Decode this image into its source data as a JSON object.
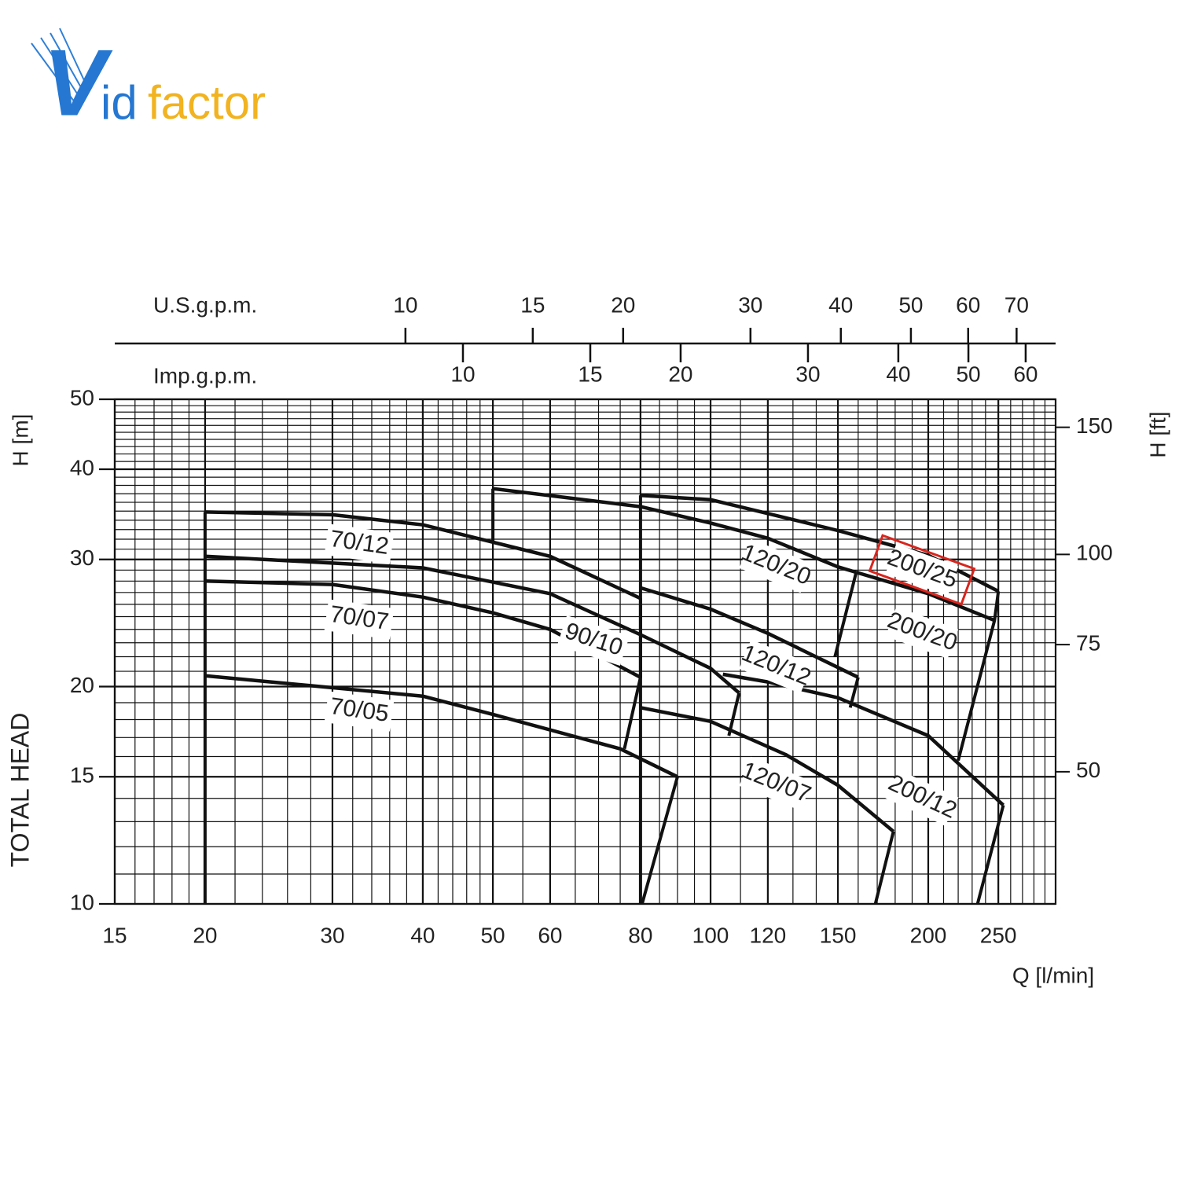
{
  "logo": [
    "V",
    "id",
    "factor"
  ],
  "chart_data": {
    "type": "line",
    "xlabel": "Q [l/min]",
    "ylabel": "H [m]",
    "ylabel_extra": "TOTAL HEAD",
    "y2label": "H [ft]",
    "xscale": "log",
    "yscale": "log",
    "xlim": [
      15,
      300
    ],
    "ylim": [
      10,
      50
    ],
    "y2lim": [
      32.8,
      164
    ],
    "xticks": [
      15,
      20,
      30,
      40,
      50,
      60,
      80,
      100,
      120,
      150,
      200,
      250
    ],
    "yticks": [
      10,
      15,
      20,
      30,
      40,
      50
    ],
    "y2ticks": [
      50,
      75,
      100,
      150
    ],
    "xgrid": [
      16,
      17,
      18,
      19,
      22,
      24,
      26,
      28,
      32,
      34,
      36,
      38,
      42,
      44,
      46,
      48,
      55,
      65,
      70,
      75,
      85,
      90,
      95,
      110,
      130,
      140,
      160,
      170,
      180,
      190,
      210,
      220,
      230,
      240,
      260,
      270,
      280,
      290
    ],
    "ygrid": [
      11,
      12,
      13,
      14,
      16,
      17,
      18,
      19,
      21,
      22,
      23,
      24,
      25,
      26,
      27,
      28,
      29,
      31,
      32,
      33,
      34,
      35,
      36,
      37,
      38,
      39,
      41,
      42,
      43,
      44,
      45,
      46,
      47,
      48,
      49
    ],
    "grid": true,
    "color": "#111111",
    "top_axes": [
      {
        "label": "U.S.g.p.m.",
        "lim": [
          3.963,
          79.26
        ],
        "ticks": [
          10,
          15,
          20,
          30,
          40,
          50,
          60,
          70
        ]
      },
      {
        "label": "Imp.g.p.m.",
        "lim": [
          3.3,
          66.0
        ],
        "ticks": [
          10,
          15,
          20,
          30,
          40,
          50,
          60
        ]
      }
    ],
    "series": [
      {
        "name": "70/12",
        "x": [
          20,
          30,
          40,
          50,
          60,
          80
        ],
        "values": [
          34.9,
          34.6,
          33.5,
          31.7,
          30.3,
          26.5
        ]
      },
      {
        "name": "70/07",
        "x": [
          20,
          30,
          40,
          50,
          60,
          80
        ],
        "values": [
          28.0,
          27.7,
          26.6,
          25.3,
          24.0,
          20.6
        ]
      },
      {
        "name": "70/05",
        "x": [
          20,
          40,
          50,
          75,
          90
        ],
        "values": [
          20.7,
          19.4,
          18.3,
          16.4,
          15.0
        ]
      },
      {
        "name": "90/10",
        "x": [
          20,
          40,
          60,
          80,
          100,
          109.5
        ],
        "values": [
          30.3,
          29.2,
          26.9,
          23.6,
          21.2,
          19.6
        ]
      },
      {
        "name": "120/20",
        "x": [
          50,
          80,
          100,
          120,
          150,
          159
        ],
        "values": [
          37.6,
          35.5,
          33.7,
          32.1,
          29.3,
          28.8
        ]
      },
      {
        "name": "120/12",
        "x": [
          80,
          100,
          120,
          160
        ],
        "values": [
          27.4,
          25.6,
          23.7,
          20.6
        ]
      },
      {
        "name": "120/07",
        "x": [
          80,
          100,
          127,
          150,
          179
        ],
        "values": [
          18.7,
          17.9,
          16.1,
          14.6,
          12.6
        ]
      },
      {
        "name": "200/25",
        "x": [
          80,
          100,
          150,
          200,
          250
        ],
        "values": [
          36.8,
          36.3,
          32.9,
          30.4,
          27.1
        ]
      },
      {
        "name": "200/20",
        "x": [
          159,
          200,
          247
        ],
        "values": [
          28.8,
          26.9,
          24.7
        ]
      },
      {
        "name": "200/12",
        "x": [
          104,
          120,
          150,
          200,
          254
        ],
        "values": [
          20.8,
          20.3,
          19.3,
          17.1,
          13.7
        ]
      }
    ],
    "limits": [
      {
        "x": [
          20,
          20
        ],
        "values": [
          10,
          34.9
        ]
      },
      {
        "x": [
          50,
          50
        ],
        "values": [
          37.6,
          31.7
        ]
      },
      {
        "x": [
          80,
          80
        ],
        "values": [
          10,
          36.8
        ]
      },
      {
        "x": [
          80,
          80,
          76
        ],
        "values": [
          26.5,
          20.6,
          16.4
        ]
      },
      {
        "x": [
          90,
          80.4
        ],
        "values": [
          15.0,
          10
        ]
      },
      {
        "x": [
          109.5,
          106
        ],
        "values": [
          19.6,
          17.1
        ]
      },
      {
        "x": [
          159,
          148.6
        ],
        "values": [
          28.8,
          22.0
        ]
      },
      {
        "x": [
          160,
          156
        ],
        "values": [
          20.6,
          18.7
        ]
      },
      {
        "x": [
          179,
          169
        ],
        "values": [
          12.6,
          10
        ]
      },
      {
        "x": [
          250,
          247,
          220
        ],
        "values": [
          27.1,
          24.7,
          15.8
        ]
      },
      {
        "x": [
          254,
          234
        ],
        "values": [
          13.7,
          10
        ]
      }
    ]
  }
}
